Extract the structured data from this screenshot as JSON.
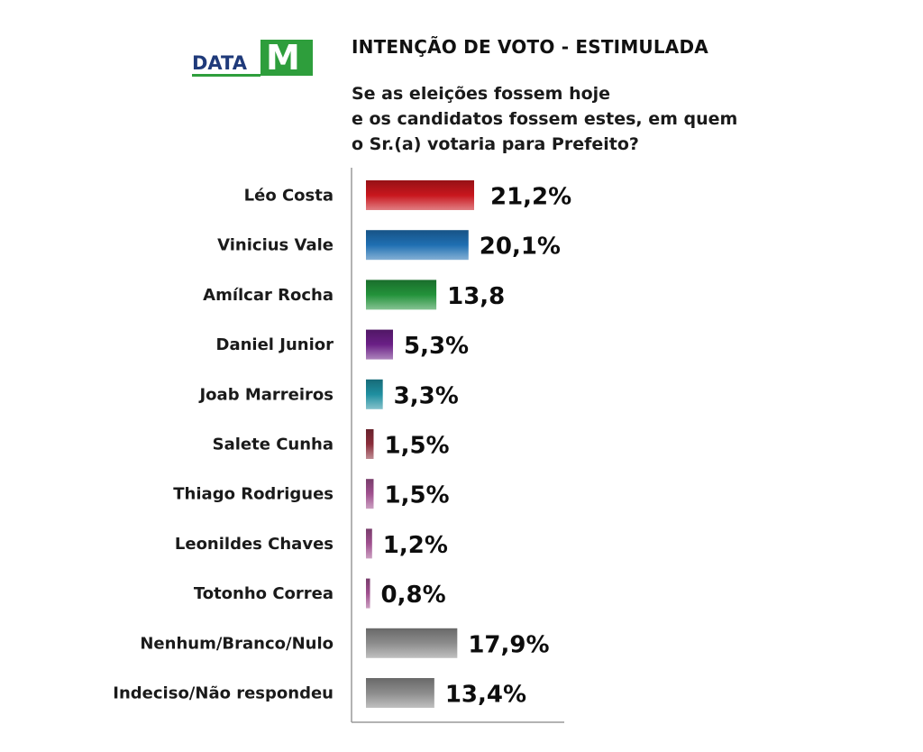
{
  "logo": {
    "text": "DATA",
    "mark": "M"
  },
  "title": "INTENÇÃO DE VOTO - ESTIMULADA",
  "question": [
    "Se as eleições fossem hoje",
    "e os candidatos fossem estes, em quem",
    "o Sr.(a) votaria para Prefeito?"
  ],
  "chart_data": {
    "type": "bar",
    "orientation": "horizontal",
    "categories": [
      "Léo Costa",
      "Vinicius Vale",
      "Amílcar Rocha",
      "Daniel Junior",
      "Joab Marreiros",
      "Salete Cunha",
      "Thiago Rodrigues",
      "Leonildes Chaves",
      "Totonho Correa",
      "Nenhum/Branco/Nulo",
      "Indeciso/Não respondeu"
    ],
    "values": [
      21.2,
      20.1,
      13.8,
      5.3,
      3.3,
      1.5,
      1.5,
      1.2,
      0.8,
      17.9,
      13.4
    ],
    "value_labels": [
      "21,2%",
      "20,1%",
      "13,8",
      "5,3%",
      "3,3%",
      "1,5%",
      "1,5%",
      "1,2%",
      "0,8%",
      "17,9%",
      "13,4%"
    ],
    "colors": [
      "#c8161d",
      "#1f6fb2",
      "#23923a",
      "#6a1f86",
      "#1f8fa0",
      "#8a2d3a",
      "#a0508f",
      "#a0508f",
      "#a0508f",
      "#8c8c8c",
      "#8c8c8c"
    ],
    "xlim": [
      0,
      22
    ],
    "grid": false,
    "legend": "none"
  }
}
